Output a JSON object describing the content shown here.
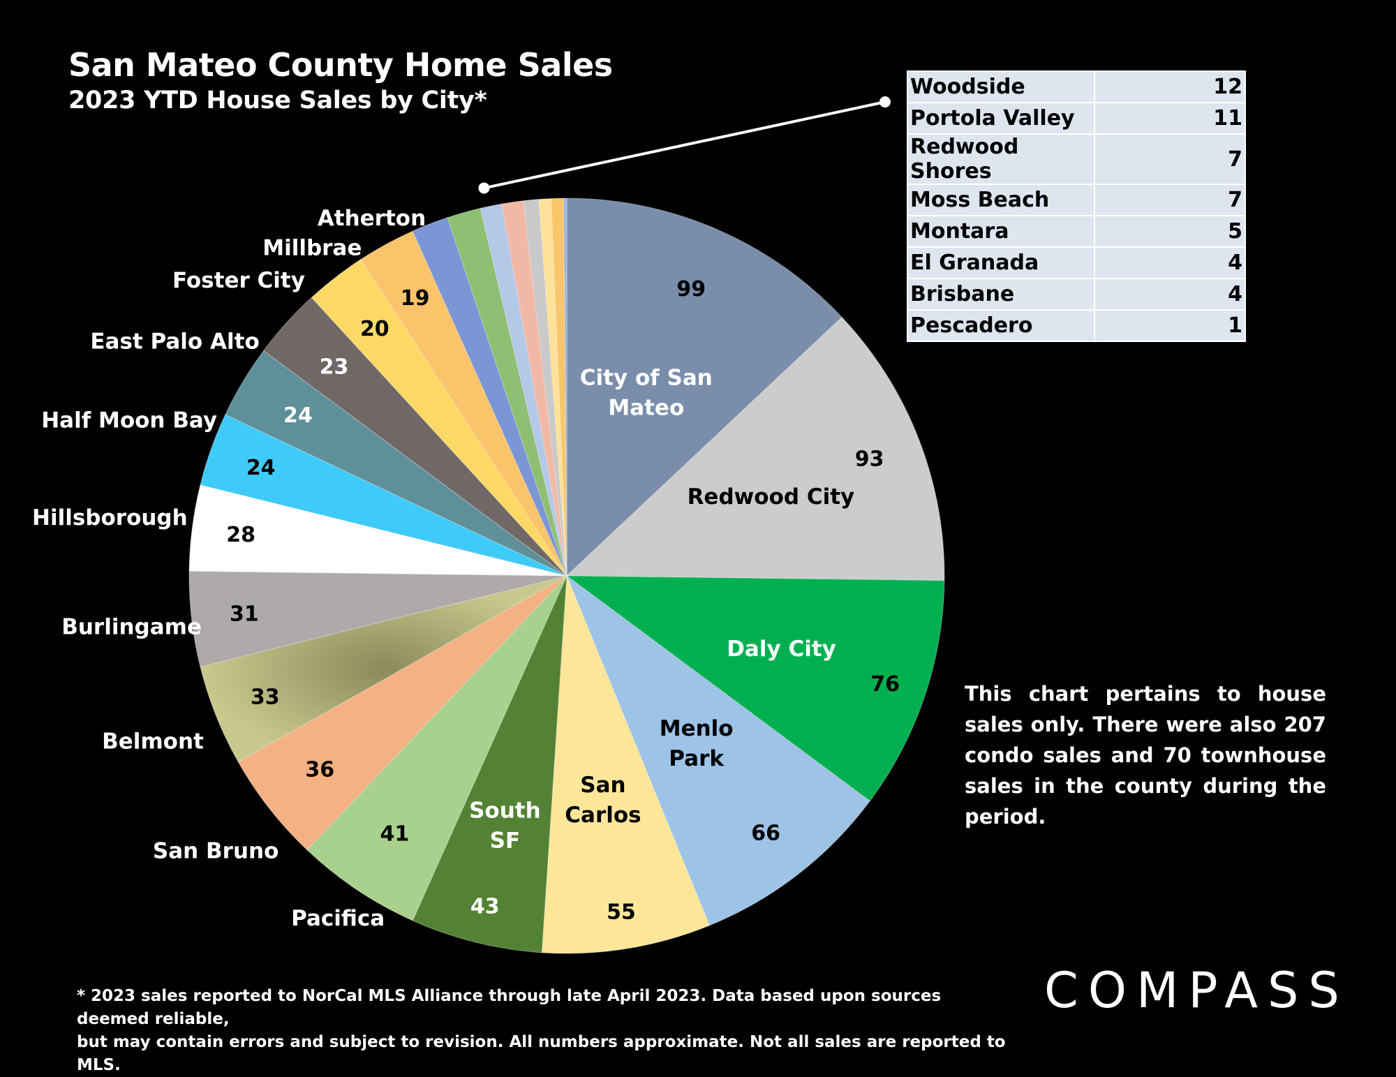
{
  "title": "San Mateo County Home Sales",
  "subtitle": "2023 YTD House Sales by City*",
  "chart_data": {
    "type": "pie",
    "title": "San Mateo County Home Sales",
    "subtitle": "2023 YTD House Sales by City*",
    "slices": [
      {
        "name": "City of San Mateo",
        "lines": [
          "City of San",
          "Mateo"
        ],
        "value": 99,
        "color": "#7a8eab",
        "label_color": "#ffffff",
        "value_color": "#000000"
      },
      {
        "name": "Redwood City",
        "lines": [
          "Redwood City"
        ],
        "value": 93,
        "color": "#cccccc",
        "label_color": "#000000",
        "value_color": "#000000"
      },
      {
        "name": "Daly City",
        "lines": [
          "Daly City"
        ],
        "value": 76,
        "color": "#00b050",
        "label_color": "#ffffff",
        "value_color": "#000000"
      },
      {
        "name": "Menlo Park",
        "lines": [
          "Menlo",
          "Park"
        ],
        "value": 66,
        "color": "#9dc3e6",
        "label_color": "#000000",
        "value_color": "#000000"
      },
      {
        "name": "San Carlos",
        "lines": [
          "San",
          "Carlos"
        ],
        "value": 55,
        "color": "#ffe699",
        "label_color": "#000000",
        "value_color": "#000000"
      },
      {
        "name": "South SF",
        "lines": [
          "South",
          "SF"
        ],
        "value": 43,
        "color": "#548235",
        "label_color": "#ffffff",
        "value_color": "#ffffff"
      },
      {
        "name": "Pacifica",
        "lines": [
          "Pacifica"
        ],
        "value": 41,
        "color": "#a9d18e",
        "label_color": "#ffffff",
        "value_color": "#000000"
      },
      {
        "name": "San Bruno",
        "lines": [
          "San Bruno"
        ],
        "value": 36,
        "color": "#f4b183",
        "label_color": "#ffffff",
        "value_color": "#000000"
      },
      {
        "name": "Belmont",
        "lines": [
          "Belmont"
        ],
        "value": 33,
        "color": "#c5c58a",
        "label_color": "#ffffff",
        "value_color": "#000000"
      },
      {
        "name": "Burlingame",
        "lines": [
          "Burlingame"
        ],
        "value": 31,
        "color": "#aeaaaa",
        "label_color": "#ffffff",
        "value_color": "#000000"
      },
      {
        "name": "Hillsborough",
        "lines": [
          "Hillsborough"
        ],
        "value": 28,
        "color": "#ffffff",
        "label_color": "#ffffff",
        "value_color": "#000000"
      },
      {
        "name": "Half Moon Bay",
        "lines": [
          "Half Moon Bay"
        ],
        "value": 24,
        "color": "#3fcbf9",
        "label_color": "#ffffff",
        "value_color": "#000000"
      },
      {
        "name": "East Palo Alto",
        "lines": [
          "East Palo Alto"
        ],
        "value": 24,
        "color": "#5f9099",
        "label_color": "#ffffff",
        "value_color": "#ffffff"
      },
      {
        "name": "Foster City",
        "lines": [
          "Foster City"
        ],
        "value": 23,
        "color": "#706866",
        "label_color": "#ffffff",
        "value_color": "#ffffff"
      },
      {
        "name": "Millbrae",
        "lines": [
          "Millbrae"
        ],
        "value": 20,
        "color": "#ffd966",
        "label_color": "#ffffff",
        "value_color": "#000000"
      },
      {
        "name": "Atherton",
        "lines": [
          "Atherton"
        ],
        "value": 19,
        "color": "#fbc36a",
        "label_color": "#ffffff",
        "value_color": "#000000"
      },
      {
        "name": "Woodside",
        "value": 12,
        "color": "#7b96d4"
      },
      {
        "name": "Portola Valley",
        "value": 11,
        "color": "#8fbf73"
      },
      {
        "name": "Redwood Shores",
        "value": 7,
        "color": "#b4c8e8"
      },
      {
        "name": "Moss Beach",
        "value": 7,
        "color": "#f2b8a6"
      },
      {
        "name": "Montara",
        "value": 5,
        "color": "#c9c9c9"
      },
      {
        "name": "El Granada",
        "value": 4,
        "color": "#ffe29a"
      },
      {
        "name": "Brisbane",
        "value": 4,
        "color": "#f9c66a"
      },
      {
        "name": "Pescadero",
        "value": 1,
        "color": "#9fb4da"
      }
    ],
    "small_slices_table": [
      {
        "city": "Woodside",
        "value": "12"
      },
      {
        "city": "Portola Valley",
        "value": "11"
      },
      {
        "city": "Redwood Shores",
        "value": "7"
      },
      {
        "city": "Moss Beach",
        "value": "7"
      },
      {
        "city": "Montara",
        "value": "5"
      },
      {
        "city": "El Granada",
        "value": "4"
      },
      {
        "city": "Brisbane",
        "value": "4"
      },
      {
        "city": "Pescadero",
        "value": "1"
      }
    ]
  },
  "note": "This chart pertains to house sales only. There were also 207 condo sales and 70 townhouse sales in the county during the period.",
  "footnote_line1": "* 2023 sales reported to NorCal MLS Alliance through late April 2023. Data based upon sources deemed reliable,",
  "footnote_line2": "but may contain errors and subject to revision. All numbers approximate. Not all sales are reported to MLS.",
  "logo": "COMPASS"
}
